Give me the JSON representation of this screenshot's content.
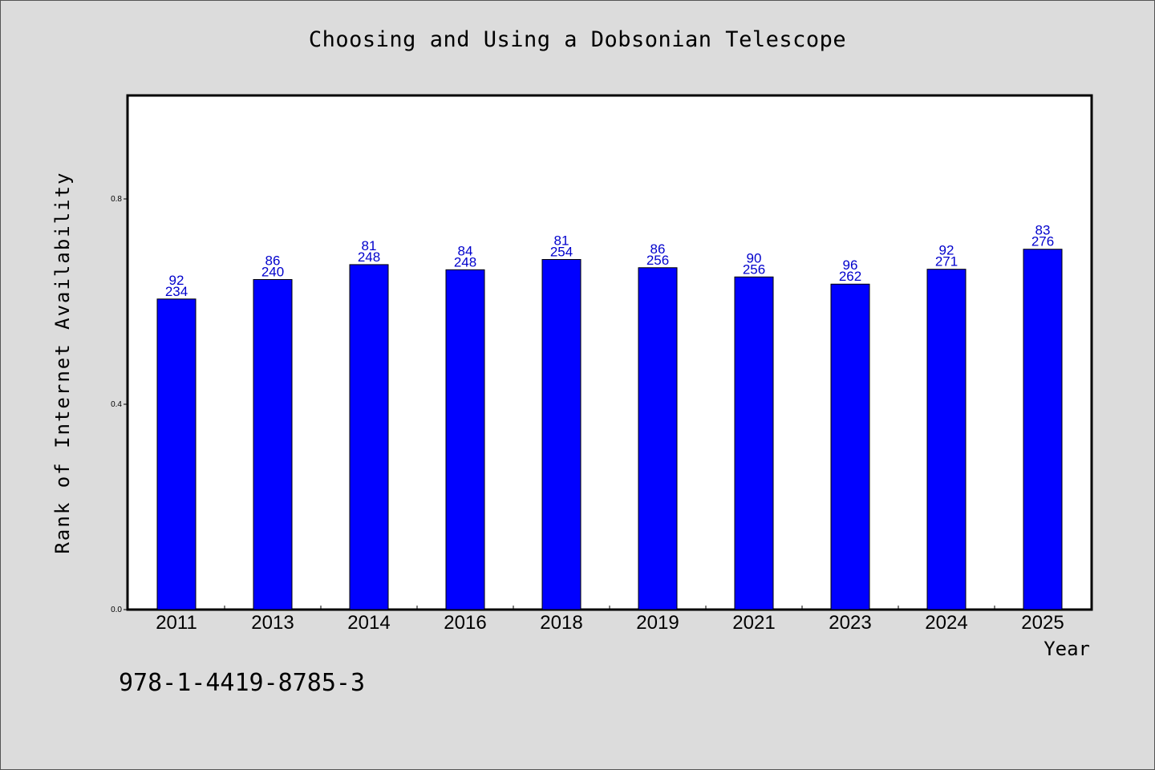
{
  "chart_data": {
    "type": "bar",
    "title": "Choosing and Using a Dobsonian Telescope",
    "xlabel": "Year",
    "ylabel": "Rank of Internet Availability",
    "ylim": [
      0,
      1.0
    ],
    "yticks": [
      0.0,
      0.4,
      0.8
    ],
    "ytick_labels": [
      "0.0",
      "0.4",
      "0.8"
    ],
    "grid": false,
    "bar_color": "#0000ff",
    "label_color": "#0000cc",
    "categories": [
      "2011",
      "2013",
      "2014",
      "2016",
      "2018",
      "2019",
      "2021",
      "2023",
      "2024",
      "2025"
    ],
    "values": [
      0.605,
      0.643,
      0.672,
      0.662,
      0.682,
      0.666,
      0.648,
      0.634,
      0.663,
      0.702
    ],
    "label_top": [
      "92",
      "86",
      "81",
      "84",
      "81",
      "86",
      "90",
      "96",
      "92",
      "83"
    ],
    "label_bottom": [
      "234",
      "240",
      "248",
      "248",
      "254",
      "256",
      "256",
      "262",
      "271",
      "276"
    ]
  },
  "footer": {
    "isbn": "978-1-4419-8785-3"
  }
}
